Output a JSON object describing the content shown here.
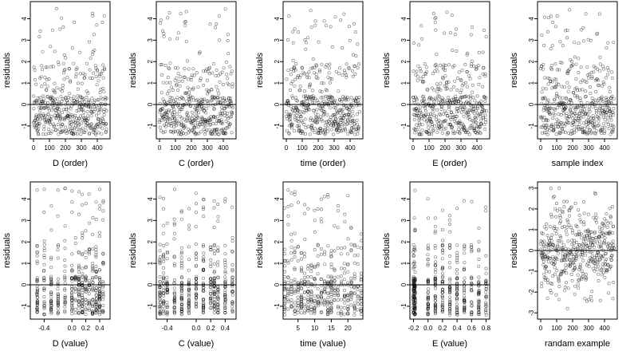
{
  "figure": {
    "panels": [
      {
        "xlabel": "D (order)",
        "ylabel": "residuals",
        "xticks": [
          "0",
          "100",
          "200",
          "300",
          "400"
        ],
        "yticks": [
          "-1",
          "0",
          "1",
          "2",
          "3",
          "4"
        ]
      },
      {
        "xlabel": "C (order)",
        "ylabel": "residuals",
        "xticks": [
          "0",
          "100",
          "200",
          "300",
          "400"
        ],
        "yticks": [
          "-1",
          "0",
          "1",
          "2",
          "3",
          "4"
        ]
      },
      {
        "xlabel": "time (order)",
        "ylabel": "residuals",
        "xticks": [
          "0",
          "100",
          "200",
          "300",
          "400"
        ],
        "yticks": [
          "-1",
          "0",
          "1",
          "2",
          "3",
          "4"
        ]
      },
      {
        "xlabel": "E (order)",
        "ylabel": "residuals",
        "xticks": [
          "0",
          "100",
          "200",
          "300",
          "400"
        ],
        "yticks": [
          "-1",
          "0",
          "1",
          "2",
          "3",
          "4"
        ]
      },
      {
        "xlabel": "sample index",
        "ylabel": "residuals",
        "xticks": [
          "0",
          "100",
          "200",
          "300",
          "400"
        ],
        "yticks": [
          "-1",
          "0",
          "1",
          "2",
          "3",
          "4"
        ]
      },
      {
        "xlabel": "D (value)",
        "ylabel": "residuals",
        "xticks": [
          "-0.4",
          "0.0",
          "0.2",
          "0.4"
        ],
        "yticks": [
          "-1",
          "0",
          "1",
          "2",
          "3",
          "4"
        ]
      },
      {
        "xlabel": "C (value)",
        "ylabel": "residuals",
        "xticks": [
          "-0.4",
          "0.0",
          "0.2",
          "0.4"
        ],
        "yticks": [
          "-1",
          "0",
          "1",
          "2",
          "3",
          "4"
        ]
      },
      {
        "xlabel": "time (value)",
        "ylabel": "residuals",
        "xticks": [
          "5",
          "10",
          "15",
          "20"
        ],
        "yticks": [
          "-1",
          "0",
          "1",
          "2",
          "3",
          "4"
        ]
      },
      {
        "xlabel": "E (value)",
        "ylabel": "residuals",
        "xticks": [
          "-0.2",
          "0.0",
          "0.2",
          "0.4",
          "0.6",
          "0.8"
        ],
        "yticks": [
          "-1",
          "0",
          "1",
          "2",
          "3",
          "4"
        ]
      },
      {
        "xlabel": "randam example",
        "ylabel": "residuals",
        "xticks": [
          "0",
          "100",
          "200",
          "300",
          "400"
        ],
        "yticks": [
          "-3",
          "-2",
          "-1",
          "0",
          "1",
          "2",
          "3"
        ]
      }
    ]
  },
  "chart_data": [
    {
      "type": "scatter",
      "xlabel": "D (order)",
      "ylabel": "residuals",
      "xlim": [
        -20,
        480
      ],
      "ylim": [
        -1.6,
        4.8
      ],
      "xticks": [
        0,
        100,
        200,
        300,
        400
      ],
      "yticks": [
        -1,
        0,
        1,
        2,
        3,
        4
      ],
      "hline": 0,
      "n_points": 460,
      "pattern": "order"
    },
    {
      "type": "scatter",
      "xlabel": "C (order)",
      "ylabel": "residuals",
      "xlim": [
        -20,
        480
      ],
      "ylim": [
        -1.6,
        4.8
      ],
      "xticks": [
        0,
        100,
        200,
        300,
        400
      ],
      "yticks": [
        -1,
        0,
        1,
        2,
        3,
        4
      ],
      "hline": 0,
      "n_points": 460,
      "pattern": "order"
    },
    {
      "type": "scatter",
      "xlabel": "time (order)",
      "ylabel": "residuals",
      "xlim": [
        -20,
        480
      ],
      "ylim": [
        -1.6,
        4.8
      ],
      "xticks": [
        0,
        100,
        200,
        300,
        400
      ],
      "yticks": [
        -1,
        0,
        1,
        2,
        3,
        4
      ],
      "hline": 0,
      "n_points": 460,
      "pattern": "order"
    },
    {
      "type": "scatter",
      "xlabel": "E (order)",
      "ylabel": "residuals",
      "xlim": [
        -20,
        480
      ],
      "ylim": [
        -1.6,
        4.8
      ],
      "xticks": [
        0,
        100,
        200,
        300,
        400
      ],
      "yticks": [
        -1,
        0,
        1,
        2,
        3,
        4
      ],
      "hline": 0,
      "n_points": 460,
      "pattern": "order"
    },
    {
      "type": "scatter",
      "xlabel": "sample index",
      "ylabel": "residuals",
      "xlim": [
        -20,
        480
      ],
      "ylim": [
        -1.6,
        4.8
      ],
      "xticks": [
        0,
        100,
        200,
        300,
        400
      ],
      "yticks": [
        -1,
        0,
        1,
        2,
        3,
        4
      ],
      "hline": 0,
      "n_points": 460,
      "pattern": "order"
    },
    {
      "type": "scatter",
      "xlabel": "D (value)",
      "ylabel": "residuals",
      "xlim": [
        -0.6,
        0.55
      ],
      "ylim": [
        -1.6,
        4.8
      ],
      "xticks": [
        -0.4,
        0.0,
        0.2,
        0.4
      ],
      "yticks": [
        -1,
        0,
        1,
        2,
        3,
        4
      ],
      "hline": 0,
      "n_points": 460,
      "pattern": "value-clusters",
      "x_clusters": [
        -0.5,
        -0.4,
        -0.3,
        -0.2,
        -0.1,
        0.0,
        0.05,
        0.1,
        0.15,
        0.2,
        0.25,
        0.3,
        0.35,
        0.4,
        0.45
      ]
    },
    {
      "type": "scatter",
      "xlabel": "C (value)",
      "ylabel": "residuals",
      "xlim": [
        -0.55,
        0.55
      ],
      "ylim": [
        -1.6,
        4.8
      ],
      "xticks": [
        -0.4,
        0.0,
        0.2,
        0.4
      ],
      "yticks": [
        -1,
        0,
        1,
        2,
        3,
        4
      ],
      "hline": 0,
      "n_points": 460,
      "pattern": "value-clusters",
      "x_clusters": [
        -0.5,
        -0.45,
        -0.4,
        -0.3,
        -0.2,
        -0.1,
        0.0,
        0.1,
        0.2,
        0.25,
        0.3,
        0.4,
        0.5
      ]
    },
    {
      "type": "scatter",
      "xlabel": "time (value)",
      "ylabel": "residuals",
      "xlim": [
        0.5,
        24.5
      ],
      "ylim": [
        -1.6,
        4.8
      ],
      "xticks": [
        5,
        10,
        15,
        20
      ],
      "yticks": [
        -1,
        0,
        1,
        2,
        3,
        4
      ],
      "hline": 0,
      "n_points": 460,
      "pattern": "value-clusters",
      "x_clusters": [
        1,
        2,
        3,
        4,
        5,
        6,
        7,
        8,
        9,
        10,
        11,
        12,
        13,
        14,
        15,
        16,
        17,
        18,
        19,
        20,
        21,
        22,
        23,
        24
      ]
    },
    {
      "type": "scatter",
      "xlabel": "E (value)",
      "ylabel": "residuals",
      "xlim": [
        -0.25,
        0.85
      ],
      "ylim": [
        -1.6,
        4.8
      ],
      "xticks": [
        -0.2,
        0.0,
        0.2,
        0.4,
        0.6,
        0.8
      ],
      "yticks": [
        -1,
        0,
        1,
        2,
        3,
        4
      ],
      "hline": 0,
      "n_points": 460,
      "pattern": "value-clusters",
      "x_clusters": [
        -0.2,
        -0.19,
        -0.18,
        0.0,
        0.1,
        0.2,
        0.3,
        0.4,
        0.5,
        0.6,
        0.7,
        0.8
      ]
    },
    {
      "type": "scatter",
      "xlabel": "randam example",
      "ylabel": "residuals",
      "xlim": [
        -20,
        480
      ],
      "ylim": [
        -3.3,
        3.3
      ],
      "xticks": [
        0,
        100,
        200,
        300,
        400
      ],
      "yticks": [
        -3,
        -2,
        -1,
        0,
        1,
        2,
        3
      ],
      "hline": 0,
      "n_points": 460,
      "pattern": "random-normal"
    }
  ]
}
